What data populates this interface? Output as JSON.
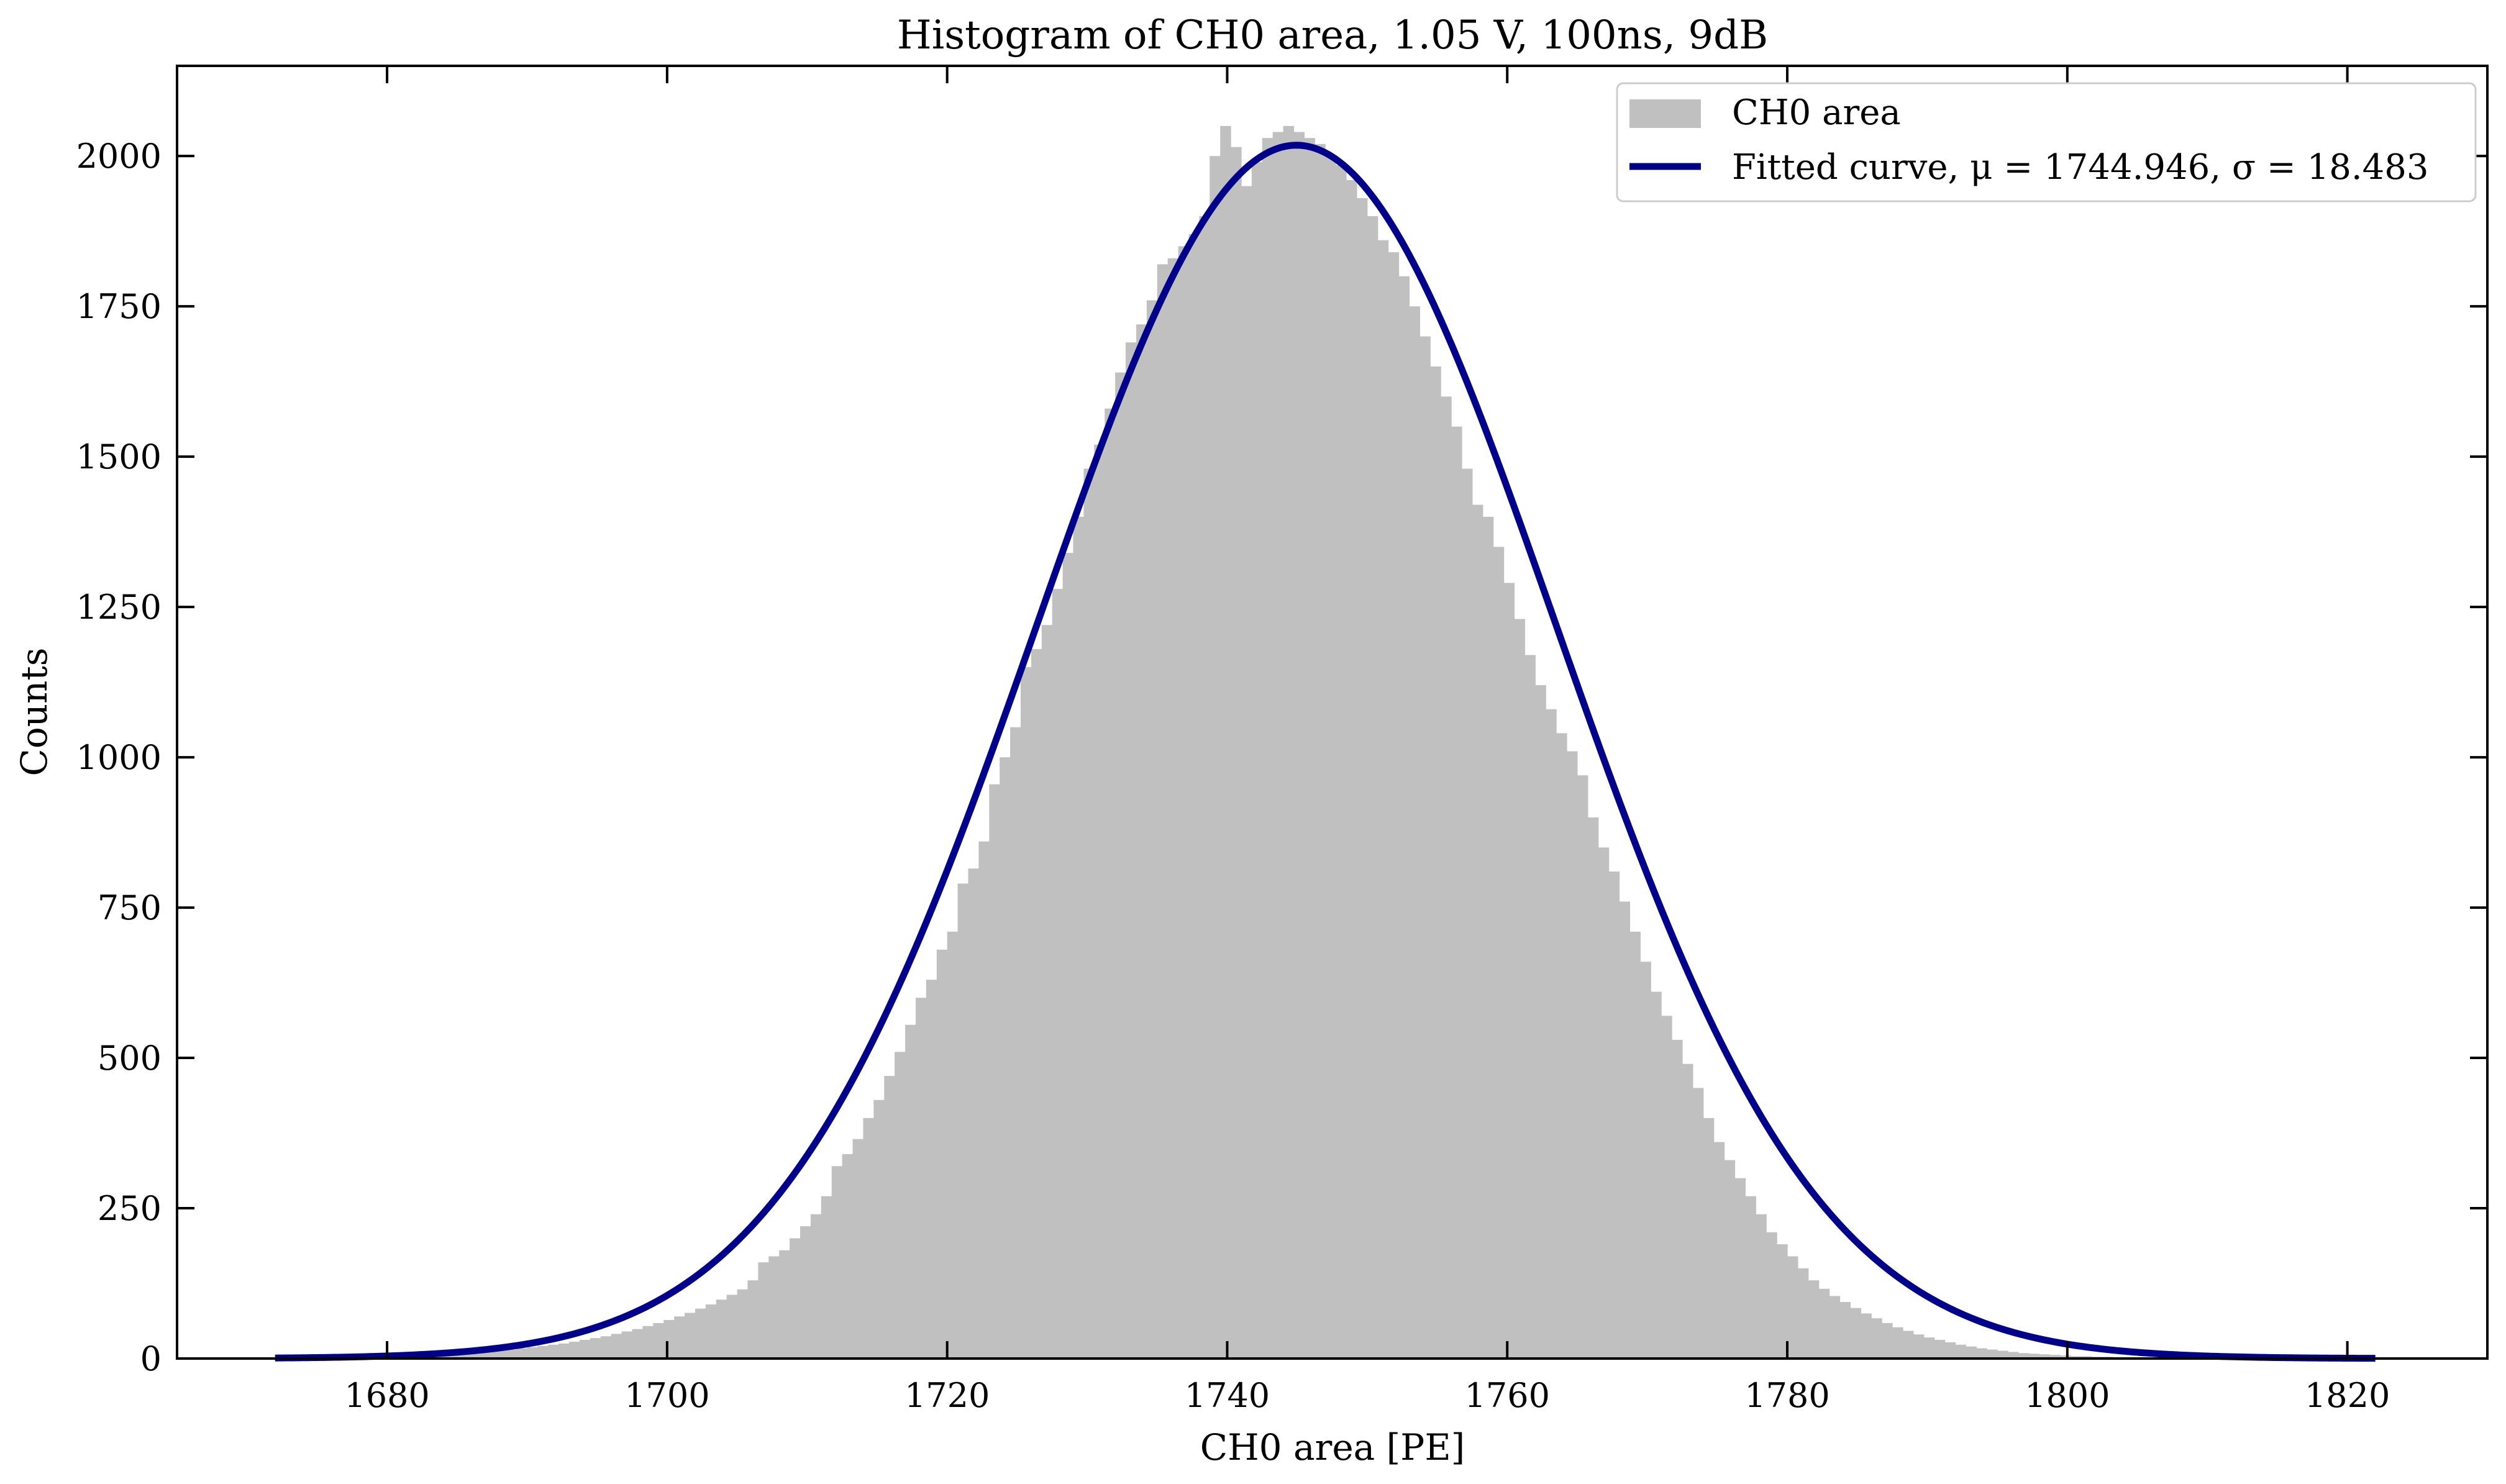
{
  "chart_data": {
    "type": "bar",
    "title": "Histogram of CH0 area, 1.05 V, 100ns, 9dB",
    "xlabel": "CH0 area [PE]",
    "ylabel": "Counts",
    "xlim": [
      1665,
      1830
    ],
    "ylim": [
      0,
      2150
    ],
    "xticks": [
      1680,
      1700,
      1720,
      1740,
      1760,
      1780,
      1800,
      1820
    ],
    "yticks": [
      0,
      250,
      500,
      750,
      1000,
      1250,
      1500,
      1750,
      2000
    ],
    "xtick_labels": [
      "1680",
      "1700",
      "1720",
      "1740",
      "1760",
      "1780",
      "1800",
      "1820"
    ],
    "ytick_labels": [
      "0",
      "250",
      "500",
      "750",
      "1000",
      "1250",
      "1500",
      "1750",
      "2000"
    ],
    "grid": false,
    "legend_position": "top-right",
    "histogram": {
      "name": "CH0 area",
      "color": "#c0c0c0",
      "bin_edges_start": 1672,
      "bin_width": 0.75,
      "counts": [
        1,
        1,
        1,
        1,
        2,
        2,
        2,
        2,
        3,
        3,
        4,
        4,
        5,
        5,
        6,
        7,
        8,
        9,
        10,
        11,
        12,
        14,
        15,
        17,
        19,
        21,
        23,
        25,
        28,
        31,
        34,
        37,
        41,
        45,
        49,
        54,
        59,
        64,
        70,
        76,
        83,
        90,
        98,
        106,
        115,
        130,
        160,
        170,
        180,
        200,
        220,
        240,
        270,
        320,
        340,
        365,
        400,
        430,
        470,
        510,
        555,
        600,
        630,
        680,
        710,
        790,
        815,
        860,
        955,
        1000,
        1050,
        1150,
        1180,
        1220,
        1280,
        1340,
        1400,
        1480,
        1520,
        1580,
        1640,
        1690,
        1720,
        1760,
        1820,
        1830,
        1850,
        1870,
        1900,
        2000,
        2050,
        2015,
        1950,
        1990,
        2030,
        2040,
        2050,
        2040,
        2030,
        2020,
        2000,
        1985,
        1960,
        1930,
        1900,
        1860,
        1840,
        1800,
        1750,
        1700,
        1650,
        1600,
        1550,
        1480,
        1420,
        1400,
        1350,
        1290,
        1230,
        1170,
        1120,
        1080,
        1040,
        1010,
        970,
        900,
        850,
        810,
        760,
        710,
        660,
        610,
        570,
        530,
        490,
        450,
        400,
        360,
        330,
        300,
        270,
        240,
        210,
        190,
        170,
        150,
        130,
        116,
        104,
        94,
        84,
        75,
        67,
        59,
        52,
        46,
        40,
        35,
        31,
        27,
        23,
        20,
        17,
        15,
        13,
        11,
        9,
        8,
        7,
        6,
        5,
        4,
        4,
        3,
        3,
        2,
        2,
        2,
        1,
        1,
        1,
        1,
        1,
        1,
        0,
        0,
        0,
        0,
        0,
        0,
        0,
        0
      ]
    },
    "fit": {
      "name": "Fitted curve, μ = 1744.946, σ = 18.483",
      "mu": 1744.946,
      "sigma": 18.483,
      "amplitude": 2018,
      "x_range": [
        1672,
        1822
      ],
      "color": "#00008b"
    }
  }
}
